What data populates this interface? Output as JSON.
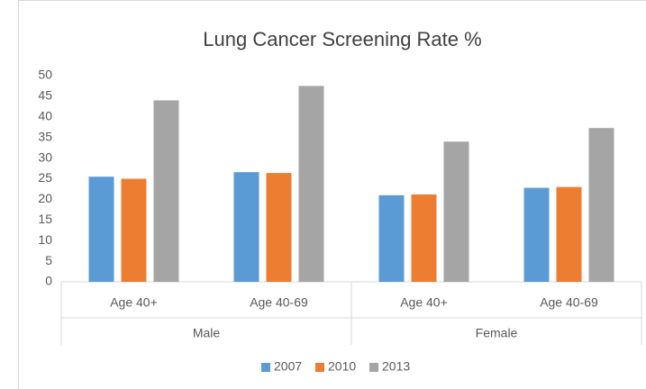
{
  "chart_data": {
    "type": "bar",
    "title": "Lung Cancer Screening Rate %",
    "categories": [
      "Age 40+",
      "Age 40-69",
      "Age 40+",
      "Age 40-69"
    ],
    "groups": [
      "Male",
      "Female"
    ],
    "series": [
      {
        "name": "2007",
        "color": "#5b9bd5",
        "values": [
          25.5,
          26.6,
          21,
          22.8
        ]
      },
      {
        "name": "2010",
        "color": "#ed7d31",
        "values": [
          25,
          26.4,
          21.2,
          23
        ]
      },
      {
        "name": "2013",
        "color": "#a5a5a5",
        "values": [
          44,
          47.5,
          34,
          37.3
        ]
      }
    ],
    "ylim": [
      0,
      50
    ],
    "yticks": [
      0,
      5,
      10,
      15,
      20,
      25,
      30,
      35,
      40,
      45,
      50
    ],
    "grid": false,
    "legend": "bottom"
  }
}
